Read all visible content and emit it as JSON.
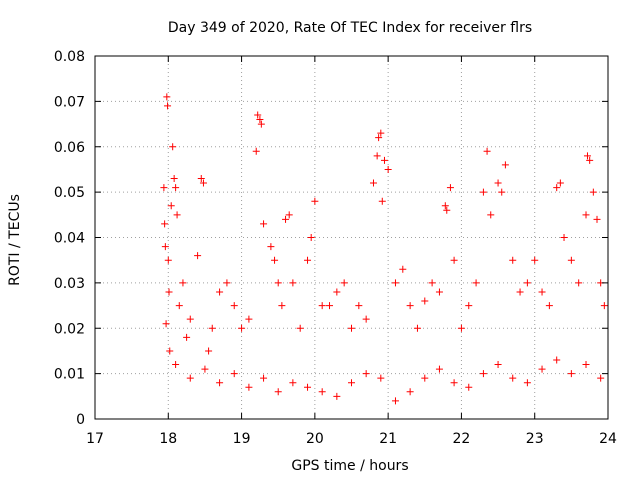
{
  "chart_data": {
    "type": "scatter",
    "title": "Day 349 of 2020, Rate Of TEC Index for receiver flrs",
    "xlabel": "GPS time / hours",
    "ylabel": "ROTI / TECUs",
    "xlim": [
      17,
      24
    ],
    "ylim": [
      0,
      0.08
    ],
    "xticks": [
      "17",
      "18",
      "19",
      "20",
      "21",
      "22",
      "23",
      "24"
    ],
    "yticks": [
      "0",
      "0.01",
      "0.02",
      "0.03",
      "0.04",
      "0.05",
      "0.06",
      "0.07",
      "0.08"
    ],
    "grid": true,
    "marker": "plus",
    "color": "#ff0000",
    "series": [
      {
        "name": "ROTI",
        "points": [
          [
            17.94,
            0.051
          ],
          [
            17.95,
            0.043
          ],
          [
            17.96,
            0.038
          ],
          [
            17.97,
            0.021
          ],
          [
            17.98,
            0.071
          ],
          [
            17.99,
            0.069
          ],
          [
            18.0,
            0.035
          ],
          [
            18.01,
            0.028
          ],
          [
            18.02,
            0.015
          ],
          [
            18.04,
            0.047
          ],
          [
            18.06,
            0.06
          ],
          [
            18.08,
            0.053
          ],
          [
            18.1,
            0.051
          ],
          [
            18.12,
            0.045
          ],
          [
            18.15,
            0.025
          ],
          [
            18.2,
            0.03
          ],
          [
            18.25,
            0.018
          ],
          [
            18.3,
            0.022
          ],
          [
            18.4,
            0.036
          ],
          [
            18.45,
            0.053
          ],
          [
            18.48,
            0.052
          ],
          [
            18.55,
            0.015
          ],
          [
            18.6,
            0.02
          ],
          [
            18.7,
            0.028
          ],
          [
            18.8,
            0.03
          ],
          [
            18.9,
            0.025
          ],
          [
            19.0,
            0.02
          ],
          [
            19.1,
            0.022
          ],
          [
            19.2,
            0.059
          ],
          [
            19.22,
            0.067
          ],
          [
            19.25,
            0.066
          ],
          [
            19.27,
            0.065
          ],
          [
            19.3,
            0.043
          ],
          [
            19.4,
            0.038
          ],
          [
            19.45,
            0.035
          ],
          [
            19.5,
            0.03
          ],
          [
            19.55,
            0.025
          ],
          [
            19.6,
            0.044
          ],
          [
            19.65,
            0.045
          ],
          [
            19.7,
            0.03
          ],
          [
            19.8,
            0.02
          ],
          [
            19.9,
            0.035
          ],
          [
            19.95,
            0.04
          ],
          [
            20.0,
            0.048
          ],
          [
            20.1,
            0.025
          ],
          [
            20.2,
            0.025
          ],
          [
            20.3,
            0.028
          ],
          [
            20.4,
            0.03
          ],
          [
            20.5,
            0.02
          ],
          [
            20.6,
            0.025
          ],
          [
            20.7,
            0.022
          ],
          [
            20.8,
            0.052
          ],
          [
            20.85,
            0.058
          ],
          [
            20.87,
            0.062
          ],
          [
            20.9,
            0.063
          ],
          [
            20.92,
            0.048
          ],
          [
            20.95,
            0.057
          ],
          [
            21.0,
            0.055
          ],
          [
            21.1,
            0.03
          ],
          [
            21.2,
            0.033
          ],
          [
            21.3,
            0.025
          ],
          [
            21.4,
            0.02
          ],
          [
            21.5,
            0.026
          ],
          [
            21.6,
            0.03
          ],
          [
            21.7,
            0.028
          ],
          [
            21.78,
            0.047
          ],
          [
            21.8,
            0.046
          ],
          [
            21.85,
            0.051
          ],
          [
            21.9,
            0.035
          ],
          [
            22.0,
            0.02
          ],
          [
            22.1,
            0.025
          ],
          [
            22.2,
            0.03
          ],
          [
            22.3,
            0.05
          ],
          [
            22.35,
            0.059
          ],
          [
            22.4,
            0.045
          ],
          [
            22.5,
            0.052
          ],
          [
            22.55,
            0.05
          ],
          [
            22.6,
            0.056
          ],
          [
            22.7,
            0.035
          ],
          [
            22.8,
            0.028
          ],
          [
            22.9,
            0.03
          ],
          [
            23.0,
            0.035
          ],
          [
            23.1,
            0.028
          ],
          [
            23.2,
            0.025
          ],
          [
            23.3,
            0.051
          ],
          [
            23.35,
            0.052
          ],
          [
            23.4,
            0.04
          ],
          [
            23.5,
            0.035
          ],
          [
            23.6,
            0.03
          ],
          [
            23.7,
            0.045
          ],
          [
            23.72,
            0.058
          ],
          [
            23.75,
            0.057
          ],
          [
            23.8,
            0.05
          ],
          [
            23.85,
            0.044
          ],
          [
            23.9,
            0.03
          ],
          [
            23.95,
            0.025
          ],
          [
            18.1,
            0.012
          ],
          [
            18.3,
            0.009
          ],
          [
            18.5,
            0.011
          ],
          [
            18.7,
            0.008
          ],
          [
            18.9,
            0.01
          ],
          [
            19.1,
            0.007
          ],
          [
            19.3,
            0.009
          ],
          [
            19.5,
            0.006
          ],
          [
            19.7,
            0.008
          ],
          [
            19.9,
            0.007
          ],
          [
            20.1,
            0.006
          ],
          [
            20.3,
            0.005
          ],
          [
            20.5,
            0.008
          ],
          [
            20.7,
            0.01
          ],
          [
            20.9,
            0.009
          ],
          [
            21.1,
            0.004
          ],
          [
            21.3,
            0.006
          ],
          [
            21.5,
            0.009
          ],
          [
            21.7,
            0.011
          ],
          [
            21.9,
            0.008
          ],
          [
            22.1,
            0.007
          ],
          [
            22.3,
            0.01
          ],
          [
            22.5,
            0.012
          ],
          [
            22.7,
            0.009
          ],
          [
            22.9,
            0.008
          ],
          [
            23.1,
            0.011
          ],
          [
            23.3,
            0.013
          ],
          [
            23.5,
            0.01
          ],
          [
            23.7,
            0.012
          ],
          [
            23.9,
            0.009
          ]
        ]
      }
    ]
  }
}
